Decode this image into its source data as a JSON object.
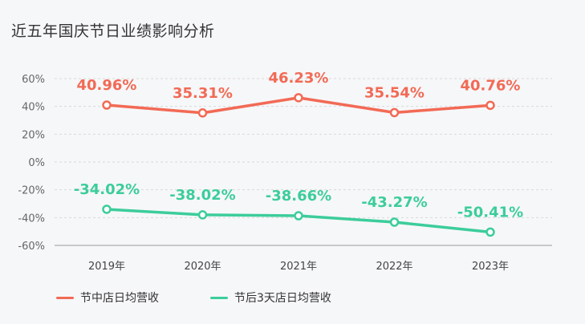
{
  "title": "近五年国庆节日业绩影响分析",
  "colors": {
    "series_1": "#f26a55",
    "series_2": "#3ccd9a",
    "grid": "#d9d9d9",
    "axis": "#666666"
  },
  "legend": {
    "series_1_label": "节中店日均营收",
    "series_2_label": "节后3天店日均营收"
  },
  "chart_data": {
    "type": "line",
    "title": "近五年国庆节日业绩影响分析",
    "categories": [
      "2019年",
      "2020年",
      "2021年",
      "2022年",
      "2023年"
    ],
    "y_ticks": [
      "60%",
      "40%",
      "20%",
      "0%",
      "-20%",
      "-40%",
      "-60%"
    ],
    "ylim": [
      -60,
      60
    ],
    "grid": true,
    "legend_position": "bottom-left",
    "series": [
      {
        "name": "节中店日均营收",
        "values": [
          40.96,
          35.31,
          46.23,
          35.54,
          40.76
        ],
        "labels": [
          "40.96%",
          "35.31%",
          "46.23%",
          "35.54%",
          "40.76%"
        ]
      },
      {
        "name": "节后3天店日均营收",
        "values": [
          -34.02,
          -38.02,
          -38.66,
          -43.27,
          -50.41
        ],
        "labels": [
          "-34.02%",
          "-38.02%",
          "-38.66%",
          "-43.27%",
          "-50.41%"
        ]
      }
    ]
  }
}
